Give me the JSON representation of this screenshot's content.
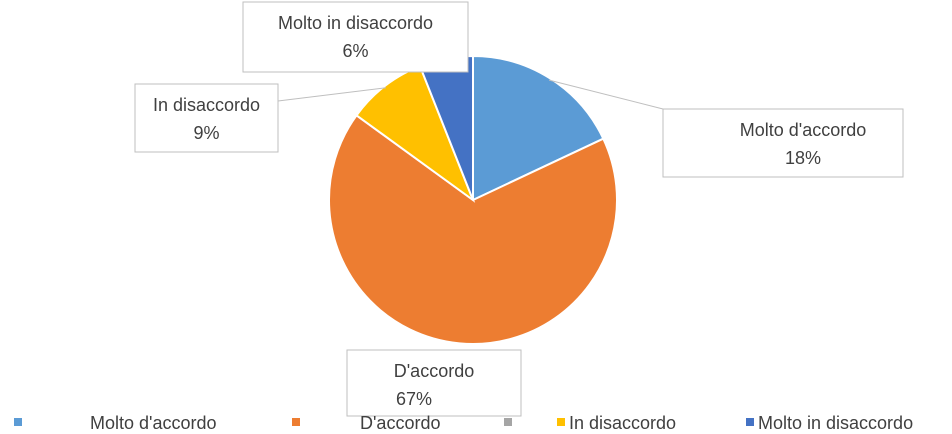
{
  "chart_data": {
    "type": "pie",
    "title": "",
    "categories": [
      "Molto d'accordo",
      "D'accordo",
      "In disaccordo",
      "Molto in disaccordo"
    ],
    "values": [
      18,
      67,
      9,
      6
    ],
    "percent_labels": [
      "18%",
      "67%",
      "9%",
      "6%"
    ],
    "colors": [
      "#5B9BD5",
      "#ED7D31",
      "#FFC000",
      "#4472C4"
    ],
    "legend": {
      "position": "bottom",
      "entries": [
        {
          "label": "Molto d'accordo",
          "color": "#5B9BD5"
        },
        {
          "label": "D'accordo",
          "color": "#ED7D31"
        },
        {
          "label": "",
          "color": "#A5A5A5"
        },
        {
          "label": "In disaccordo",
          "color": "#FFC000"
        },
        {
          "label": "Molto in disaccordo",
          "color": "#4472C4"
        }
      ]
    },
    "data_labels": "callout boxes with leader lines",
    "start_angle": "12 o'clock, clockwise"
  }
}
